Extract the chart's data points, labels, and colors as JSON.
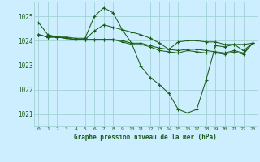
{
  "background_color": "#cceeff",
  "grid_color": "#99cccc",
  "line_color": "#1a5c1a",
  "marker_color": "#1a5c1a",
  "xlabel": "Graphe pression niveau de la mer (hPa)",
  "xlabel_color": "#1a5c1a",
  "xlim": [
    -0.5,
    23.5
  ],
  "ylim": [
    1020.5,
    1025.6
  ],
  "yticks": [
    1021,
    1022,
    1023,
    1024,
    1025
  ],
  "xticks": [
    0,
    1,
    2,
    3,
    4,
    5,
    6,
    7,
    8,
    9,
    10,
    11,
    12,
    13,
    14,
    15,
    16,
    17,
    18,
    19,
    20,
    21,
    22,
    23
  ],
  "series": [
    [
      1024.75,
      1024.25,
      1024.15,
      1024.15,
      1024.1,
      1024.1,
      1025.0,
      1025.35,
      1025.15,
      1024.45,
      1023.9,
      1022.95,
      1022.5,
      1022.2,
      1021.85,
      1021.2,
      1021.05,
      1021.2,
      1022.4,
      1023.8,
      1023.75,
      1023.85,
      1023.6,
      1023.9
    ],
    [
      1024.25,
      1024.15,
      1024.15,
      1024.1,
      1024.05,
      1024.05,
      1024.4,
      1024.65,
      1024.55,
      1024.45,
      1024.35,
      1024.25,
      1024.1,
      1023.9,
      1023.65,
      1023.95,
      1024.0,
      1024.0,
      1023.95,
      1023.95,
      1023.85,
      1023.85,
      1023.85,
      1023.9
    ],
    [
      1024.25,
      1024.15,
      1024.15,
      1024.1,
      1024.05,
      1024.05,
      1024.05,
      1024.05,
      1024.05,
      1024.0,
      1023.9,
      1023.9,
      1023.8,
      1023.7,
      1023.65,
      1023.6,
      1023.65,
      1023.65,
      1023.6,
      1023.55,
      1023.5,
      1023.6,
      1023.5,
      1023.9
    ],
    [
      1024.25,
      1024.15,
      1024.15,
      1024.1,
      1024.05,
      1024.05,
      1024.05,
      1024.05,
      1024.05,
      1023.95,
      1023.85,
      1023.85,
      1023.75,
      1023.6,
      1023.55,
      1023.5,
      1023.6,
      1023.55,
      1023.5,
      1023.5,
      1023.45,
      1023.55,
      1023.45,
      1023.9
    ]
  ]
}
